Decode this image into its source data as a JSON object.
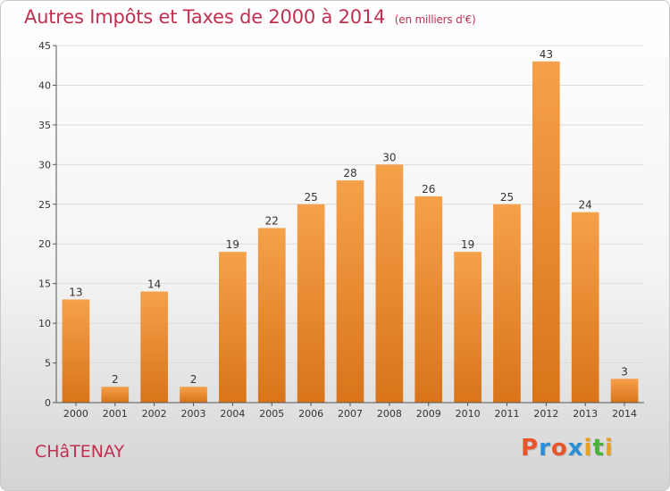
{
  "header": {
    "title": "Autres Impôts et Taxes de 2000 à 2014",
    "subtitle": "(en milliers d'€)"
  },
  "place_name": "CHâTENAY",
  "logo": {
    "text": "Proxiti",
    "colors": [
      "#e8552a",
      "#2a8fd6",
      "#e8552a",
      "#2a8fd6",
      "#e8a020",
      "#4bb33c",
      "#e8a020"
    ]
  },
  "colors": {
    "bar_light": "#f5a14a",
    "bar_dark": "#d9741a",
    "text_accent": "#c0304f"
  },
  "chart_data": {
    "type": "bar",
    "title": "Autres Impôts et Taxes de 2000 à 2014",
    "subtitle": "(en milliers d'€)",
    "categories": [
      "2000",
      "2001",
      "2002",
      "2003",
      "2004",
      "2005",
      "2006",
      "2007",
      "2008",
      "2009",
      "2010",
      "2011",
      "2012",
      "2013",
      "2014"
    ],
    "values": [
      13,
      2,
      14,
      2,
      19,
      22,
      25,
      28,
      30,
      26,
      19,
      25,
      43,
      24,
      3
    ],
    "ylim": [
      0,
      45
    ],
    "yticks": [
      0,
      5,
      10,
      15,
      20,
      25,
      30,
      35,
      40,
      45
    ],
    "grid": true,
    "xlabel": "",
    "ylabel": ""
  }
}
